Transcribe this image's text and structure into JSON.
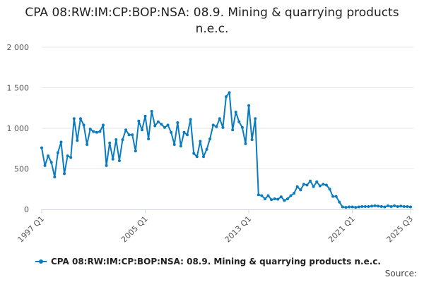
{
  "chart_data": {
    "type": "line",
    "title": "CPA 08:RW:IM:CP:BOP:NSA: 08.9. Mining & quarrying products n.e.c.",
    "xlabel": "",
    "ylabel": "",
    "ylim": [
      0,
      2000
    ],
    "y_ticks": [
      0,
      500,
      1000,
      1500,
      2000
    ],
    "y_tick_labels": [
      "0",
      "500",
      "1 000",
      "1 500",
      "2 000"
    ],
    "x_start_label": "1997 Q1",
    "x_ticks": [
      {
        "label": "1997 Q1",
        "index": 0
      },
      {
        "label": "2005 Q1",
        "index": 32
      },
      {
        "label": "2013 Q1",
        "index": 64
      },
      {
        "label": "2021 Q1",
        "index": 96
      },
      {
        "label": "2025 Q3",
        "index": 114
      }
    ],
    "grid": true,
    "legend_position": "bottom-left",
    "series": [
      {
        "name": "CPA 08:RW:IM:CP:BOP:NSA: 08.9. Mining & quarrying products n.e.c.",
        "color": "#0a7bbf",
        "values": [
          760,
          540,
          660,
          580,
          400,
          700,
          830,
          440,
          660,
          640,
          1120,
          850,
          1120,
          1040,
          800,
          990,
          960,
          950,
          960,
          1040,
          540,
          820,
          620,
          860,
          600,
          860,
          980,
          920,
          920,
          720,
          1090,
          980,
          1150,
          870,
          1210,
          1030,
          1080,
          1050,
          1010,
          1040,
          950,
          800,
          1070,
          780,
          950,
          920,
          1110,
          690,
          650,
          840,
          650,
          740,
          870,
          1040,
          1020,
          1120,
          1010,
          1390,
          1440,
          980,
          1200,
          1080,
          1010,
          810,
          1280,
          860,
          1120,
          180,
          170,
          130,
          170,
          120,
          130,
          125,
          155,
          110,
          130,
          170,
          200,
          280,
          240,
          310,
          300,
          350,
          280,
          340,
          290,
          310,
          300,
          250,
          160,
          160,
          90,
          30,
          25,
          30,
          30,
          25,
          30,
          35,
          35,
          35,
          40,
          45,
          40,
          35,
          30,
          45,
          35,
          45,
          35,
          40,
          35,
          35,
          30
        ]
      }
    ]
  },
  "legend": {
    "label": "CPA 08:RW:IM:CP:BOP:NSA: 08.9. Mining & quarrying products n.e.c."
  },
  "credits": {
    "label": "Source:"
  }
}
